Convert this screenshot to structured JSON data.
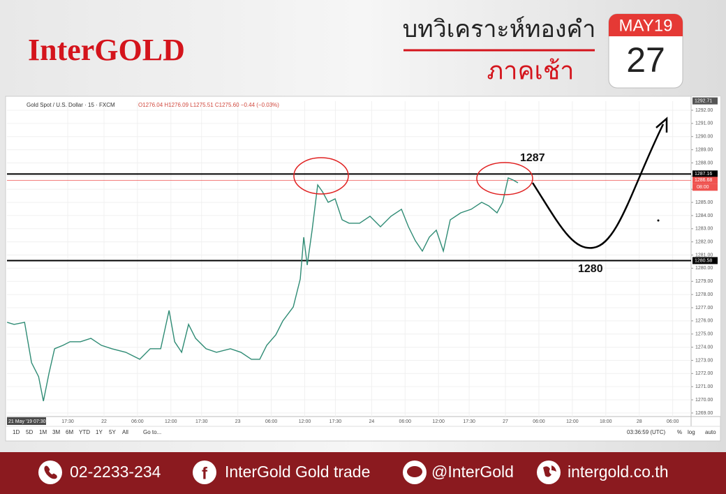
{
  "header": {
    "logo": "InterGOLD",
    "title": "บทวิเคราะห์ทองคำ",
    "subtitle": "ภาคเช้า",
    "calendar_month": "MAY19",
    "calendar_day": "27"
  },
  "chart_data": {
    "type": "line",
    "title": "Gold Spot / U.S. Dollar · 15 · FXCM",
    "ohlc_legend": "O1276.04 H1276.09 L1275.51 C1275.60 −0.44 (−0.03%)",
    "color": "#2e8b74",
    "x": [
      6.63,
      7.88,
      9.76,
      11.01,
      12.27,
      13.14,
      14.14,
      15.14,
      16.65,
      17.9,
      19.77,
      21.65,
      23.53,
      25.41,
      27.91,
      30.41,
      32.29,
      34.17,
      35.67,
      36.67,
      37.92,
      39.17,
      40.43,
      42.3,
      44.18,
      46.68,
      48.56,
      50.44,
      51.94,
      53.19,
      54.82,
      56.07,
      57.95,
      59.2,
      59.82,
      60.45,
      61.33,
      62.33,
      63.2,
      64.21,
      65.46,
      66.71,
      67.96,
      69.84,
      71.71,
      73.59,
      75.47,
      77.35,
      78.6,
      79.85,
      81.1,
      82.35,
      83.6,
      84.86,
      86.11,
      87.99,
      89.86,
      91.74,
      92.99,
      94.49,
      95.49,
      96.5,
      97.37,
      98.25
    ],
    "values": [
      1275.89,
      1275.73,
      1275.89,
      1272.82,
      1271.76,
      1269.9,
      1272.02,
      1273.88,
      1274.14,
      1274.41,
      1274.41,
      1274.67,
      1274.14,
      1273.88,
      1273.61,
      1273.08,
      1273.88,
      1273.88,
      1276.79,
      1274.41,
      1273.61,
      1275.73,
      1274.67,
      1273.88,
      1273.61,
      1273.88,
      1273.61,
      1273.08,
      1273.08,
      1274.14,
      1274.94,
      1275.99,
      1277.06,
      1279.18,
      1282.36,
      1280.24,
      1282.89,
      1286.33,
      1285.8,
      1285.01,
      1285.27,
      1283.68,
      1283.42,
      1283.42,
      1283.95,
      1283.15,
      1283.95,
      1284.48,
      1283.15,
      1282.09,
      1281.3,
      1282.36,
      1282.89,
      1281.3,
      1283.68,
      1284.21,
      1284.48,
      1285.01,
      1284.74,
      1284.21,
      1285.01,
      1286.86,
      1286.7,
      1286.49
    ],
    "xlim": [
      6.6,
      129.3
    ],
    "xticks": [
      {
        "value": 7.5,
        "label": "21 May '19  07:30"
      },
      {
        "value": 17.5,
        "label": "17:30"
      },
      {
        "value": 24,
        "label": "22"
      },
      {
        "value": 30,
        "label": "06:00"
      },
      {
        "value": 36,
        "label": "12:00"
      },
      {
        "value": 41.5,
        "label": "17:30"
      },
      {
        "value": 48,
        "label": "23"
      },
      {
        "value": 54,
        "label": "06:00"
      },
      {
        "value": 60,
        "label": "12:00"
      },
      {
        "value": 65.5,
        "label": "17:30"
      },
      {
        "value": 72,
        "label": "24"
      },
      {
        "value": 78,
        "label": "06:00"
      },
      {
        "value": 84,
        "label": "12:00"
      },
      {
        "value": 89.5,
        "label": "17:30"
      },
      {
        "value": 96,
        "label": "27"
      },
      {
        "value": 102,
        "label": "06:00"
      },
      {
        "value": 108,
        "label": "12:00"
      },
      {
        "value": 114,
        "label": "18:00"
      },
      {
        "value": 120,
        "label": "28"
      },
      {
        "value": 126,
        "label": "06:00"
      }
    ],
    "ylim": [
      1268.73,
      1292.69
    ],
    "yticks": [
      {
        "value": 1269,
        "label": "1269.00"
      },
      {
        "value": 1270,
        "label": "1270.00"
      },
      {
        "value": 1271,
        "label": "1271.00"
      },
      {
        "value": 1272,
        "label": "1272.00"
      },
      {
        "value": 1273,
        "label": "1273.00"
      },
      {
        "value": 1274,
        "label": "1274.00"
      },
      {
        "value": 1275,
        "label": "1275.00"
      },
      {
        "value": 1276,
        "label": "1276.00"
      },
      {
        "value": 1277,
        "label": "1277.00"
      },
      {
        "value": 1278,
        "label": "1278.00"
      },
      {
        "value": 1279,
        "label": "1279.00"
      },
      {
        "value": 1280,
        "label": "1280.00"
      },
      {
        "value": 1281,
        "label": "1281.00"
      },
      {
        "value": 1282,
        "label": "1282.00"
      },
      {
        "value": 1283,
        "label": "1283.00"
      },
      {
        "value": 1284,
        "label": "1284.00"
      },
      {
        "value": 1285,
        "label": "1285.00"
      },
      {
        "value": 1286,
        "label": "1286.00"
      },
      {
        "value": 1287,
        "label": "1287.00"
      },
      {
        "value": 1288,
        "label": "1288.00"
      },
      {
        "value": 1289,
        "label": "1289.00"
      },
      {
        "value": 1290,
        "label": "1290.00"
      },
      {
        "value": 1291,
        "label": "1291.00"
      },
      {
        "value": 1292,
        "label": "1292.00"
      }
    ],
    "grid": true,
    "top_price": 1292.71,
    "price_lines": [
      {
        "value": 1287.16,
        "color": "#000000"
      },
      {
        "value": 1280.58,
        "color": "#000000"
      },
      {
        "value": 1286.68,
        "color": "#ef5350"
      }
    ],
    "countdown": "08:00",
    "annotations": [
      "1287",
      "1280"
    ]
  },
  "toolbar": {
    "ranges": [
      "1D",
      "5D",
      "1M",
      "3M",
      "6M",
      "YTD",
      "1Y",
      "5Y",
      "All"
    ],
    "goto": "Go to...",
    "time": "03:36:59 (UTC)",
    "options": [
      "%",
      "log",
      "auto"
    ]
  },
  "footer": {
    "phone": "02-2233-234",
    "facebook": "InterGold Gold trade",
    "line": "@InterGold",
    "website": "intergold.co.th"
  }
}
